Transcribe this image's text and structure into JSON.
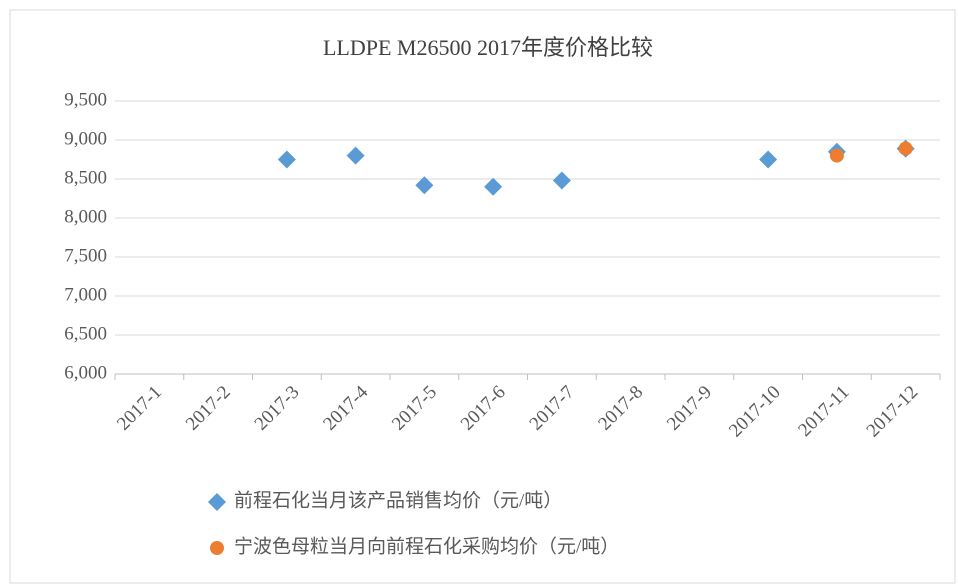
{
  "chart_data": {
    "type": "scatter",
    "title": "LLDPE M26500  2017年度价格比较",
    "categories": [
      "2017-1",
      "2017-2",
      "2017-3",
      "2017-4",
      "2017-5",
      "2017-6",
      "2017-7",
      "2017-8",
      "2017-9",
      "2017-10",
      "2017-11",
      "2017-12"
    ],
    "series": [
      {
        "name": "前程石化当月该产品销售均价（元/吨）",
        "color": "#5b9bd5",
        "marker": "diamond",
        "values": [
          null,
          null,
          8750,
          8800,
          8420,
          8400,
          8480,
          null,
          null,
          8750,
          8850,
          8890
        ]
      },
      {
        "name": "宁波色母粒当月向前程石化采购均价（元/吨）",
        "color": "#ed7d31",
        "marker": "circle",
        "values": [
          null,
          null,
          null,
          null,
          null,
          null,
          null,
          null,
          null,
          null,
          8800,
          8890
        ]
      }
    ],
    "ylim": [
      6000,
      9500
    ],
    "yticks": [
      {
        "value": 6000,
        "label": "6,000"
      },
      {
        "value": 6500,
        "label": "6,500"
      },
      {
        "value": 7000,
        "label": "7,000"
      },
      {
        "value": 7500,
        "label": "7,500"
      },
      {
        "value": 8000,
        "label": "8,000"
      },
      {
        "value": 8500,
        "label": "8,500"
      },
      {
        "value": 9000,
        "label": "9,000"
      },
      {
        "value": 9500,
        "label": "9,500"
      }
    ],
    "grid": true,
    "legend": "bottom"
  }
}
